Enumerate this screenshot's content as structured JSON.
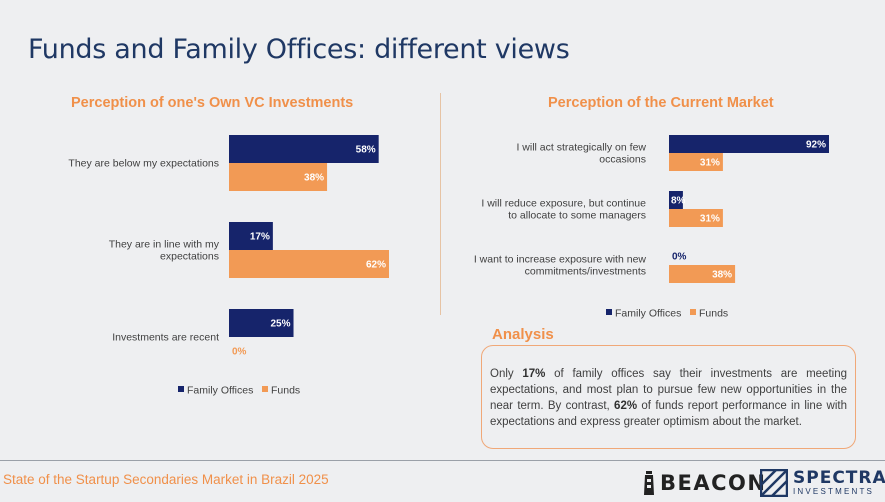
{
  "page": {
    "title": "Funds and Family Offices: different views",
    "footer": "State of the Startup Secondaries Market in Brazil 2025"
  },
  "colors": {
    "family_offices": "#16246b",
    "funds": "#f29a55",
    "accent": "#f0904a"
  },
  "chart_data": [
    {
      "type": "bar",
      "orientation": "horizontal",
      "title": "Perception of one's Own VC Investments",
      "categories": [
        [
          "They are below my expectations"
        ],
        [
          "They are in line with my",
          "expectations"
        ],
        [
          "Investments are recent"
        ]
      ],
      "series": [
        {
          "name": "Family Offices",
          "values": [
            58,
            17,
            25
          ],
          "labels": [
            "58%",
            "17%",
            "25%"
          ]
        },
        {
          "name": "Funds",
          "values": [
            38,
            62,
            0
          ],
          "labels": [
            "38%",
            "62%",
            "0%"
          ]
        }
      ],
      "xlim": [
        0,
        62
      ],
      "legend": "bottom"
    },
    {
      "type": "bar",
      "orientation": "horizontal",
      "title": "Perception of the Current Market",
      "categories": [
        [
          "I will act strategically on few",
          "occasions"
        ],
        [
          "I will reduce exposure, but continue",
          "to allocate to some managers"
        ],
        [
          "I want to increase exposure with new",
          "commitments/investments"
        ]
      ],
      "series": [
        {
          "name": "Family Offices",
          "values": [
            92,
            8,
            0
          ],
          "labels": [
            "92%",
            "8%",
            "0%"
          ]
        },
        {
          "name": "Funds",
          "values": [
            31,
            31,
            38
          ],
          "labels": [
            "31%",
            "31%",
            "38%"
          ]
        }
      ],
      "xlim": [
        0,
        92
      ],
      "legend": "bottom"
    }
  ],
  "analysis": {
    "title": "Analysis",
    "p1": "Only ",
    "b1": "17%",
    "p2": " of family offices say their investments are meeting expectations, and most plan to pursue few new opportunities in the near term. By contrast, ",
    "b2": "62%",
    "p3": " of funds report performance in line with expectations and express greater optimism about the market."
  },
  "logos": {
    "beacon": "BEACON",
    "spectra": "SPECTRA",
    "spectra_sub": "INVESTMENTS"
  }
}
